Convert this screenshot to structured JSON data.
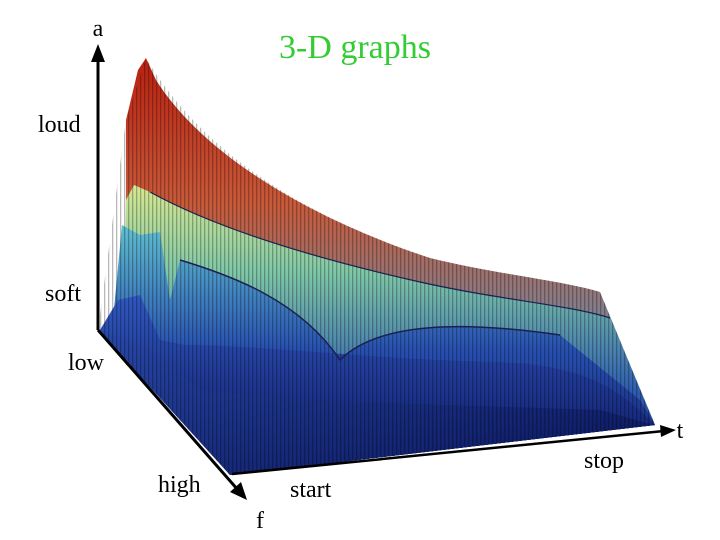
{
  "title": "3-D graphs",
  "axes": {
    "a": {
      "label": "a",
      "high": "loud",
      "low": "soft"
    },
    "f": {
      "label": "f",
      "low": "low",
      "high": "high"
    },
    "t": {
      "label": "t",
      "start": "start",
      "stop": "stop"
    }
  }
}
